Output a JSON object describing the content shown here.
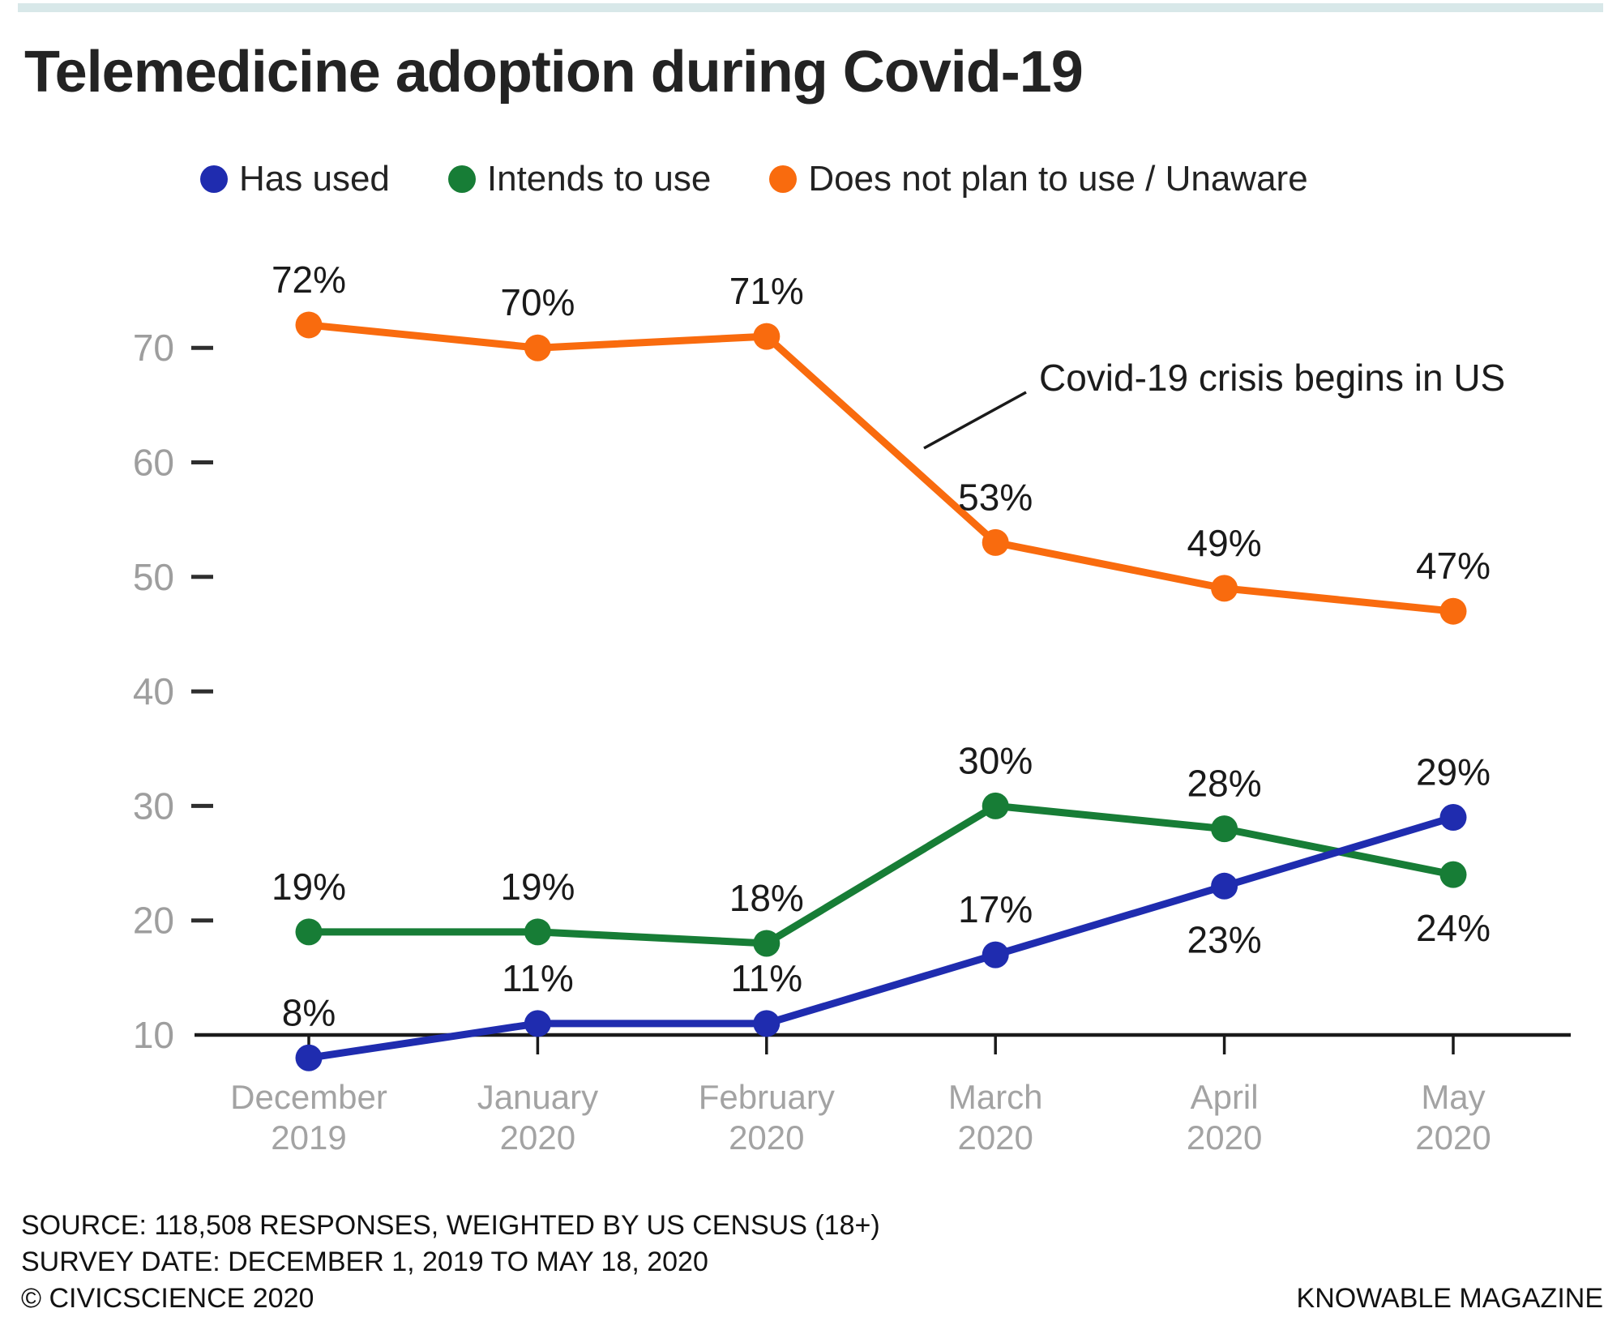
{
  "page": {
    "title": "Telemedicine adoption during Covid-19",
    "accent_bar_color": "#d8e8e9"
  },
  "chart_data": {
    "type": "line",
    "title": "Telemedicine adoption during Covid-19",
    "value_suffix": "%",
    "categories": [
      {
        "month": "December",
        "year": "2019"
      },
      {
        "month": "January",
        "year": "2020"
      },
      {
        "month": "February",
        "year": "2020"
      },
      {
        "month": "March",
        "year": "2020"
      },
      {
        "month": "April",
        "year": "2020"
      },
      {
        "month": "May",
        "year": "2020"
      }
    ],
    "series": [
      {
        "name": "Has used",
        "color": "#1f2caf",
        "values": [
          8,
          11,
          11,
          17,
          23,
          29
        ],
        "label_position": [
          "above",
          "above",
          "above",
          "above",
          "below",
          "above"
        ]
      },
      {
        "name": "Intends to use",
        "color": "#177d36",
        "values": [
          19,
          19,
          18,
          30,
          28,
          24
        ],
        "label_position": [
          "above",
          "above",
          "above",
          "above",
          "above",
          "below"
        ]
      },
      {
        "name": "Does not plan to use / Unaware",
        "color": "#f96b0e",
        "values": [
          72,
          70,
          71,
          53,
          49,
          47
        ],
        "label_position": [
          "above",
          "above",
          "above",
          "above",
          "above",
          "above"
        ]
      }
    ],
    "y_axis": {
      "ticks": [
        10,
        20,
        30,
        40,
        50,
        60,
        70
      ],
      "baseline": 10
    },
    "ylim": [
      10,
      80
    ],
    "grid": "off",
    "legend_position": "top",
    "annotation": {
      "text": "Covid-19 crisis begins in US"
    }
  },
  "footer": {
    "source": "SOURCE: 118,508 RESPONSES, WEIGHTED BY US CENSUS (18+)",
    "survey_date": "SURVEY DATE: DECEMBER 1, 2019 TO MAY 18, 2020",
    "copyright": "© CIVICSCIENCE 2020",
    "brand": "KNOWABLE MAGAZINE"
  }
}
